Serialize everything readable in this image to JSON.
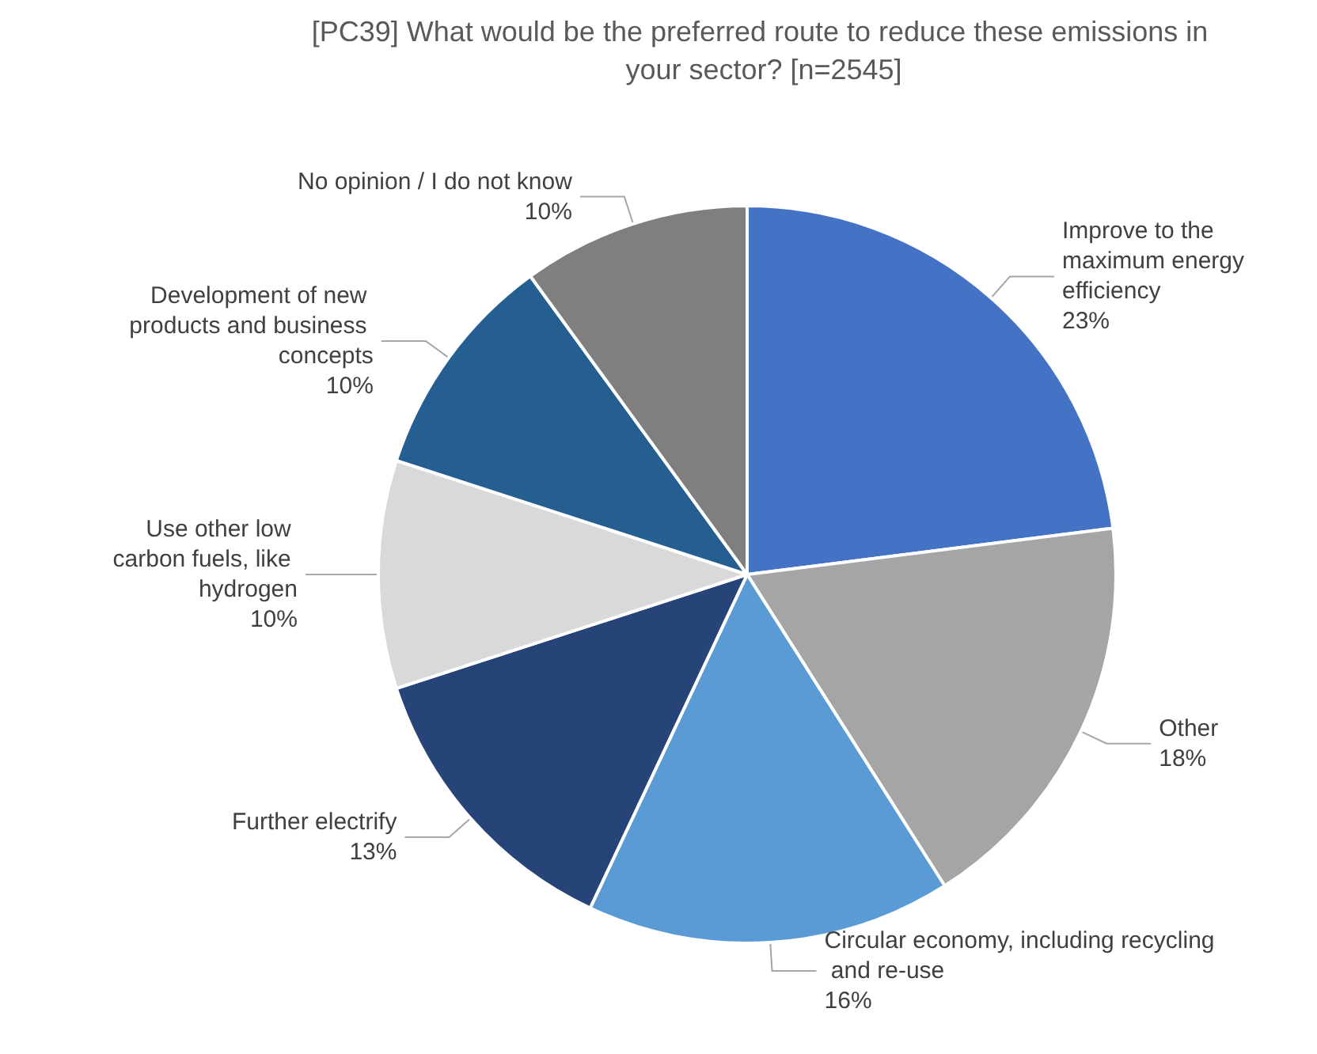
{
  "chart_data": {
    "type": "pie",
    "title": "[PC39] What would be the preferred route to reduce these emissions in your sector? [n=2545]",
    "categories": [
      "Improve to the maximum energy efficiency",
      "Other",
      "Circular economy, including recycling and re-use",
      "Further electrify",
      "Use other low carbon fuels, like hydrogen",
      "Development of new products and business concepts",
      "No opinion / I do not know"
    ],
    "values": [
      23,
      18,
      16,
      13,
      10,
      10,
      10
    ],
    "value_labels": [
      "23%",
      "18%",
      "16%",
      "13%",
      "10%",
      "10%",
      "10%"
    ],
    "colors": [
      "#4472c4",
      "#a5a5a5",
      "#5b9bd5",
      "#264478",
      "#d9d9d9",
      "#255e91",
      "#7f7f7f"
    ],
    "legend": false
  }
}
